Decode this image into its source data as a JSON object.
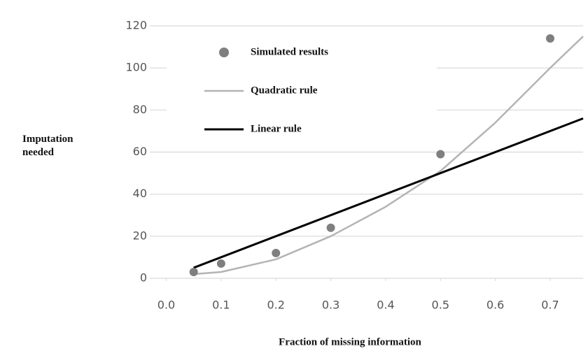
{
  "chart_data": {
    "type": "scatter",
    "x_label": "Fraction of missing information",
    "y_label": "Imputation needed",
    "xlim": [
      -0.03,
      0.76
    ],
    "ylim": [
      0,
      120
    ],
    "xticks": [
      {
        "value": 0,
        "label": "0.0"
      },
      0.1,
      0.2,
      0.3,
      0.4,
      0.5,
      0.6,
      0.7
    ],
    "yticks": [
      0,
      20,
      40,
      60,
      80,
      100,
      120
    ],
    "grid": true,
    "legend": "upper left",
    "series": [
      {
        "name": "Simulated results",
        "mode": "markers",
        "color": "#7f7f7f",
        "x": [
          0.05,
          0.1,
          0.2,
          0.3,
          0.5,
          0.7
        ],
        "values": [
          3,
          7,
          12,
          24,
          59,
          114
        ]
      },
      {
        "name": "Quadratic rule",
        "mode": "line",
        "color": "#b4b4b4",
        "x": [
          0.05,
          0.1,
          0.2,
          0.3,
          0.4,
          0.5,
          0.6,
          0.7,
          0.76
        ],
        "values": [
          2,
          3,
          9,
          20,
          34,
          51,
          74,
          100,
          115
        ]
      },
      {
        "name": "Linear rule",
        "mode": "line",
        "color": "#000000",
        "x": [
          0.05,
          0.76
        ],
        "values": [
          5,
          76
        ]
      }
    ]
  }
}
